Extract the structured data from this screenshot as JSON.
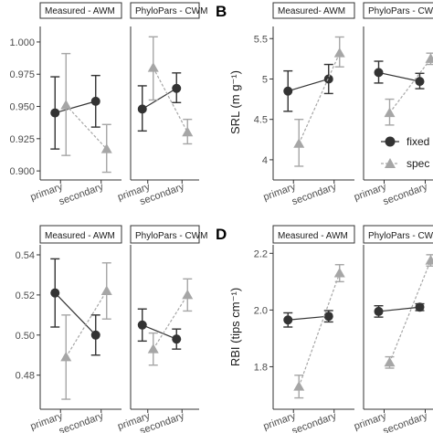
{
  "colors": {
    "fixed": "#333333",
    "species": "#a6a6a6"
  },
  "legend": {
    "items": [
      {
        "key": "fixed",
        "label": "fixed"
      },
      {
        "key": "species",
        "label": "spec"
      }
    ]
  },
  "chart_data": [
    {
      "id": "A",
      "letter": "",
      "type": "line",
      "ylabel": "",
      "ylim": [
        0.893,
        1.012
      ],
      "yticks": [
        0.9,
        0.925,
        0.95,
        0.975,
        1.0
      ],
      "ytick_labels": [
        "0.900",
        "0.925",
        "0.950",
        "0.975",
        "1.000"
      ],
      "facets": [
        {
          "strip": "Measured - AWM",
          "categories": [
            "primary",
            "secondary"
          ],
          "series": [
            {
              "key": "fixed",
              "values": [
                0.945,
                0.954
              ],
              "lower": [
                0.917,
                0.934
              ],
              "upper": [
                0.973,
                0.974
              ]
            },
            {
              "key": "species",
              "values": [
                0.951,
                0.917
              ],
              "lower": [
                0.912,
                0.899
              ],
              "upper": [
                0.991,
                0.936
              ]
            }
          ]
        },
        {
          "strip": "PhyloPars - CWM",
          "categories": [
            "primary",
            "secondary"
          ],
          "series": [
            {
              "key": "fixed",
              "values": [
                0.948,
                0.964
              ],
              "lower": [
                0.931,
                0.953
              ],
              "upper": [
                0.966,
                0.976
              ]
            },
            {
              "key": "species",
              "values": [
                0.98,
                0.93
              ],
              "lower": [
                0.955,
                0.921
              ],
              "upper": [
                1.004,
                0.94
              ]
            }
          ]
        }
      ]
    },
    {
      "id": "B",
      "letter": "B",
      "type": "line",
      "ylabel": "SRL (m g⁻¹)",
      "ylim": [
        3.75,
        5.65
      ],
      "yticks": [
        4,
        4.5,
        5,
        5.5
      ],
      "ytick_labels": [
        "4",
        "4.5",
        "5",
        "5.5"
      ],
      "facets": [
        {
          "strip": "Measured- AWM",
          "categories": [
            "primary",
            "secondary"
          ],
          "series": [
            {
              "key": "fixed",
              "values": [
                4.85,
                5.0
              ],
              "lower": [
                4.6,
                4.82
              ],
              "upper": [
                5.1,
                5.18
              ]
            },
            {
              "key": "species",
              "values": [
                4.2,
                5.32
              ],
              "lower": [
                3.92,
                5.15
              ],
              "upper": [
                4.5,
                5.52
              ]
            }
          ]
        },
        {
          "strip": "PhyloPars - CWM",
          "categories": [
            "primary",
            "secondary"
          ],
          "series": [
            {
              "key": "fixed",
              "values": [
                5.08,
                4.97
              ],
              "lower": [
                4.95,
                4.88
              ],
              "upper": [
                5.22,
                5.07
              ]
            },
            {
              "key": "species",
              "values": [
                4.58,
                5.25
              ],
              "lower": [
                4.43,
                5.18
              ],
              "upper": [
                4.75,
                5.32
              ]
            }
          ]
        }
      ]
    },
    {
      "id": "C",
      "letter": "",
      "type": "line",
      "ylabel": "",
      "ylim": [
        0.463,
        0.545
      ],
      "yticks": [
        0.48,
        0.5,
        0.52,
        0.54
      ],
      "ytick_labels": [
        "0.48",
        "0.50",
        "0.52",
        "0.54"
      ],
      "facets": [
        {
          "strip": "Measured - AWM",
          "categories": [
            "primary",
            "secondary"
          ],
          "series": [
            {
              "key": "fixed",
              "values": [
                0.521,
                0.5
              ],
              "lower": [
                0.504,
                0.49
              ],
              "upper": [
                0.538,
                0.51
              ]
            },
            {
              "key": "species",
              "values": [
                0.489,
                0.522
              ],
              "lower": [
                0.468,
                0.508
              ],
              "upper": [
                0.51,
                0.536
              ]
            }
          ]
        },
        {
          "strip": "PhyloPars - CWM",
          "categories": [
            "primary",
            "secondary"
          ],
          "series": [
            {
              "key": "fixed",
              "values": [
                0.505,
                0.498
              ],
              "lower": [
                0.497,
                0.493
              ],
              "upper": [
                0.513,
                0.503
              ]
            },
            {
              "key": "species",
              "values": [
                0.493,
                0.52
              ],
              "lower": [
                0.485,
                0.512
              ],
              "upper": [
                0.501,
                0.528
              ]
            }
          ]
        }
      ]
    },
    {
      "id": "D",
      "letter": "D",
      "type": "line",
      "ylabel": "RBI (tips cm⁻¹)",
      "ylim": [
        1.65,
        2.23
      ],
      "yticks": [
        1.8,
        2.0,
        2.2
      ],
      "ytick_labels": [
        "1.8",
        "2.0",
        "2.2"
      ],
      "facets": [
        {
          "strip": "Measured - AWM",
          "categories": [
            "primary",
            "secondary"
          ],
          "series": [
            {
              "key": "fixed",
              "values": [
                1.965,
                1.978
              ],
              "lower": [
                1.94,
                1.958
              ],
              "upper": [
                1.99,
                1.998
              ]
            },
            {
              "key": "species",
              "values": [
                1.73,
                2.13
              ],
              "lower": [
                1.69,
                2.1
              ],
              "upper": [
                1.77,
                2.16
              ]
            }
          ]
        },
        {
          "strip": "PhyloPars - CWM",
          "categories": [
            "primary",
            "secondary"
          ],
          "series": [
            {
              "key": "fixed",
              "values": [
                1.995,
                2.01
              ],
              "lower": [
                1.975,
                1.998
              ],
              "upper": [
                2.015,
                2.022
              ]
            },
            {
              "key": "species",
              "values": [
                1.815,
                2.175
              ],
              "lower": [
                1.795,
                2.155
              ],
              "upper": [
                1.835,
                2.195
              ]
            }
          ]
        }
      ]
    }
  ]
}
